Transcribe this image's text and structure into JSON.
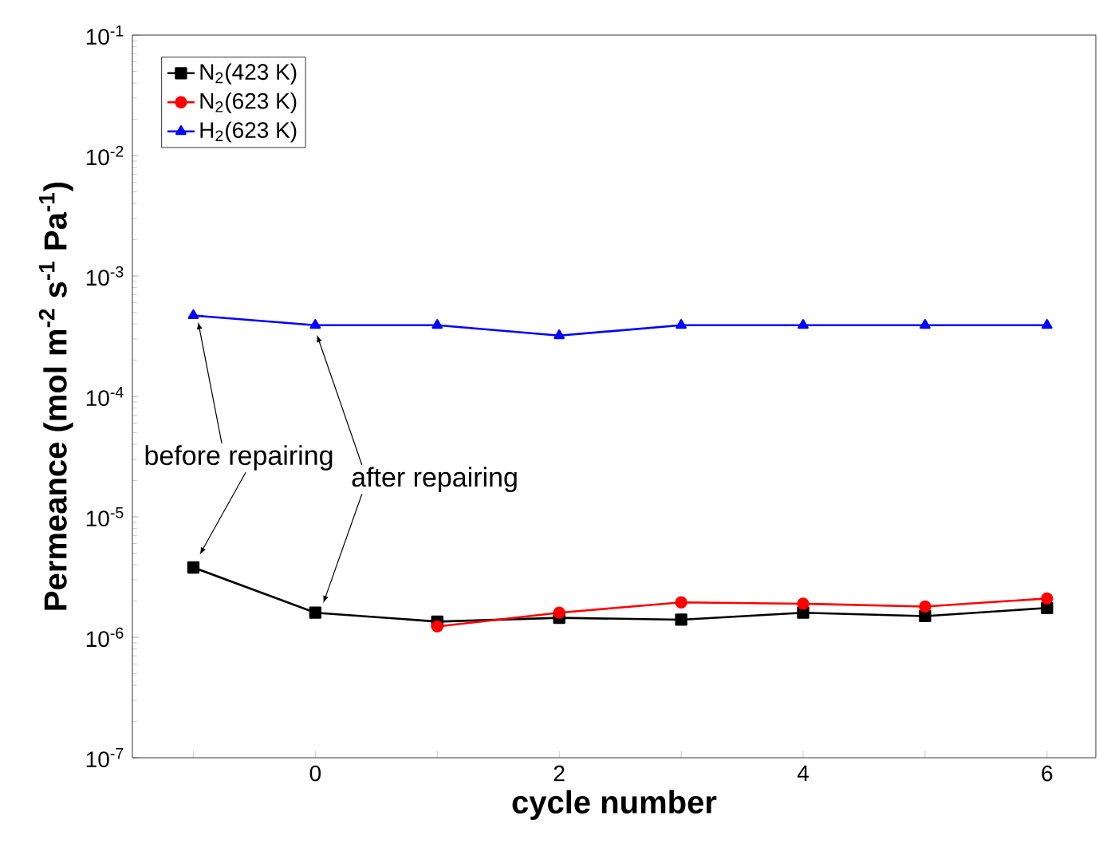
{
  "chart_data": {
    "type": "line",
    "xlabel": "cycle number",
    "ylabel": "Permeance (mol m$^{-2}$ s$^{-1}$ Pa$^{-1}$)",
    "log": "y",
    "legend": "top left",
    "xlim": [
      -1.5,
      6.4
    ],
    "xticks": [
      {
        "value": -1,
        "label": null
      },
      0,
      {
        "value": 1,
        "label": null
      },
      2,
      {
        "value": 3,
        "label": null
      },
      4,
      {
        "value": 5,
        "label": null
      },
      6
    ],
    "ylim": [
      1e-07,
      0.1
    ],
    "yticks": [
      {
        "value": 1e-07,
        "label": "10$^{-7}$"
      },
      {
        "value": 1e-06,
        "label": "10$^{-6}$"
      },
      {
        "value": 1e-05,
        "label": "10$^{-5}$"
      },
      {
        "value": 0.0001,
        "label": "10$^{-4}$"
      },
      {
        "value": 0.001,
        "label": "10$^{-3}$"
      },
      {
        "value": 0.01,
        "label": "10$^{-2}$"
      },
      {
        "value": 0.1,
        "label": "10$^{-1}$"
      }
    ],
    "series": [
      {
        "name": "N$_{2}$(423 K)",
        "color": "#000000",
        "marker": "square",
        "x": [
          -1,
          0,
          1,
          2,
          3,
          4,
          5,
          6
        ],
        "values": [
          3.8e-06,
          1.6e-06,
          1.35e-06,
          1.45e-06,
          1.4e-06,
          1.6e-06,
          1.5e-06,
          1.75e-06
        ]
      },
      {
        "name": "N$_{2}$(623 K)",
        "color": "#ff0000",
        "marker": "circle",
        "x": [
          1,
          2,
          3,
          4,
          5,
          6
        ],
        "values": [
          1.23e-06,
          1.6e-06,
          1.95e-06,
          1.9e-06,
          1.8e-06,
          2.1e-06
        ]
      },
      {
        "name": "H$_{2}$(623 K)",
        "color": "#0000ff",
        "marker": "triangle",
        "x": [
          -1,
          0,
          1,
          2,
          3,
          4,
          5,
          6
        ],
        "values": [
          0.00047,
          0.00039,
          0.00039,
          0.00032,
          0.00039,
          0.00039,
          0.00039,
          0.00039
        ]
      }
    ],
    "annotations": [
      "before repairing",
      "after repairing"
    ]
  }
}
